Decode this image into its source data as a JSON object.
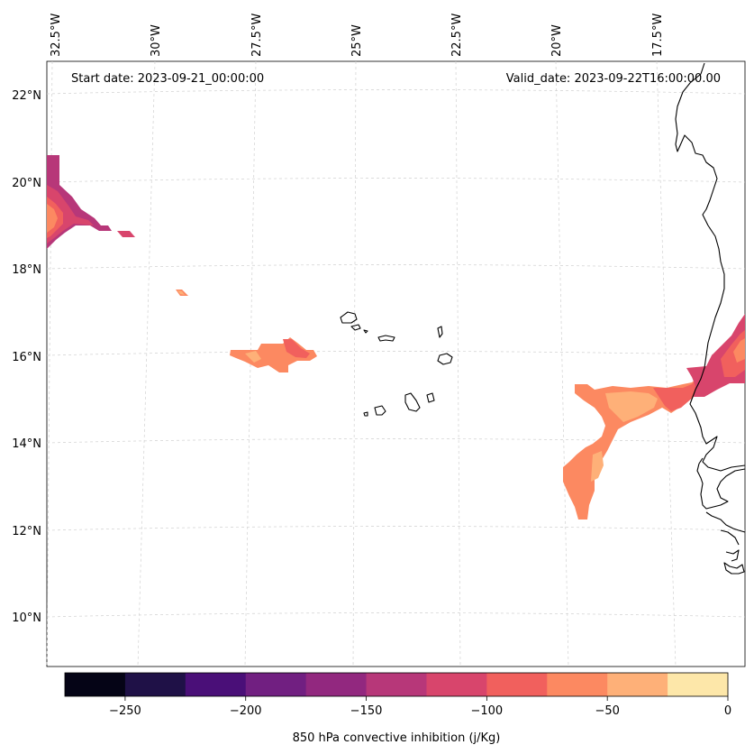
{
  "map": {
    "start_date_label": "Start date: 2023-09-21_00:00:00",
    "valid_date_label": "Valid_date: 2023-09-22T16:00:00.00",
    "lon_labels": [
      "32.5°W",
      "30°W",
      "27.5°W",
      "25°W",
      "22.5°W",
      "20°W",
      "17.5°W"
    ],
    "lat_labels": [
      "22°N",
      "20°N",
      "18°N",
      "16°N",
      "14°N",
      "12°N",
      "10°N"
    ],
    "extent": {
      "lon_min": -33.0,
      "lon_max": -15.4,
      "lat_min": 9.0,
      "lat_max": 22.8
    },
    "gridline_style": "dashed light gray"
  },
  "colorbar": {
    "label": "850 hPa convective inhibition (j/Kg)",
    "ticks": [
      "−250",
      "−200",
      "−150",
      "−100",
      "−50",
      "0"
    ],
    "levels": [
      -275,
      -250,
      -225,
      -200,
      -175,
      -150,
      -125,
      -100,
      -75,
      -50,
      -25,
      0
    ],
    "colors": [
      "#050416",
      "#1f1147",
      "#4a0f78",
      "#711f81",
      "#92287f",
      "#b73779",
      "#d8456c",
      "#f1605d",
      "#fc8961",
      "#feb078",
      "#fde7a9"
    ]
  },
  "features": {
    "cin_regions": [
      "NW corner cluster",
      "central cluster near 27.5°W 16°N",
      "east cluster near African coast"
    ],
    "land": [
      "Cape Verde islands",
      "West African coastline"
    ]
  }
}
